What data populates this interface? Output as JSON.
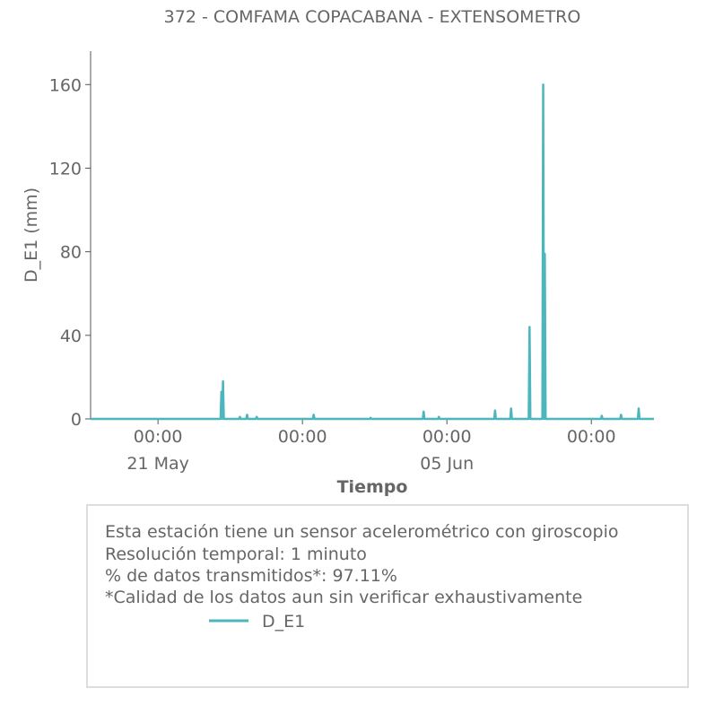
{
  "chart_data": {
    "type": "line",
    "title": "372 - COMFAMA COPACABANA - EXTENSOMETRO",
    "x_label": "Tiempo",
    "y_label": "D_E1 (mm)",
    "x": [
      "17 May 12:00",
      "24 May 06:00",
      "24 May 07:00",
      "24 May 08:00",
      "24 May 09:00",
      "24 May 10:00",
      "25 May 05:00",
      "25 May 06:00",
      "25 May 07:00",
      "25 May 14:00",
      "25 May 15:00",
      "25 May 16:00",
      "26 May 02:00",
      "26 May 03:00",
      "26 May 04:00",
      "29 May 01:00",
      "29 May 02:00",
      "29 May 03:00",
      "01 Jun 00:00",
      "01 Jun 01:00",
      "01 Jun 02:00",
      "03 Jun 18:00",
      "03 Jun 19:00",
      "03 Jun 20:00",
      "04 Jun 13:00",
      "04 Jun 14:00",
      "04 Jun 15:00",
      "07 Jun 11:00",
      "07 Jun 12:00",
      "07 Jun 13:00",
      "08 Jun 07:00",
      "08 Jun 08:00",
      "08 Jun 09:00",
      "09 Jun 06:00",
      "09 Jun 07:00",
      "09 Jun 08:00",
      "09 Jun 23:00",
      "10 Jun 00:00",
      "10 Jun 01:00",
      "10 Jun 02:00",
      "10 Jun 03:00",
      "13 Jun 00:00",
      "13 Jun 01:00",
      "13 Jun 02:00",
      "14 Jun 00:00",
      "14 Jun 01:00",
      "14 Jun 02:00",
      "14 Jun 22:00",
      "14 Jun 23:00",
      "15 Jun 00:00",
      "15 Jun 18:00"
    ],
    "series": [
      {
        "name": "D_E1",
        "color": "#4db6bc",
        "values": [
          0,
          0,
          13,
          0,
          18,
          0,
          0,
          1,
          0,
          0,
          2,
          0,
          0,
          1,
          0,
          0,
          2,
          0,
          0,
          0.5,
          0,
          0,
          3.5,
          0,
          0,
          1,
          0,
          0,
          4,
          0,
          0,
          5,
          0,
          0,
          44,
          0,
          0,
          160,
          0,
          79,
          0,
          0,
          1.5,
          0,
          0,
          2,
          0,
          0,
          5,
          0,
          0
        ]
      }
    ],
    "xlim": [
      "17 May 12:00",
      "15 Jun 18:00"
    ],
    "xticks": [
      {
        "value": "21 May 00:00",
        "label": "00:00\n21 May"
      },
      {
        "value": "28 May 12:00",
        "label": "00:00"
      },
      {
        "value": "05 Jun 00:00",
        "label": "00:00\n05 Jun"
      },
      {
        "value": "12 Jun 12:00",
        "label": "00:00"
      }
    ],
    "ylim": [
      0,
      176
    ],
    "yticks": [
      0,
      40,
      80,
      120,
      160
    ],
    "grid": false
  },
  "info": {
    "lines": [
      "Esta estación tiene un sensor acelerométrico con giroscopio",
      "Resolución temporal: 1 minuto",
      "% de datos transmitidos*: 97.11%",
      "*Calidad de los datos aun sin verificar exhaustivamente"
    ]
  }
}
